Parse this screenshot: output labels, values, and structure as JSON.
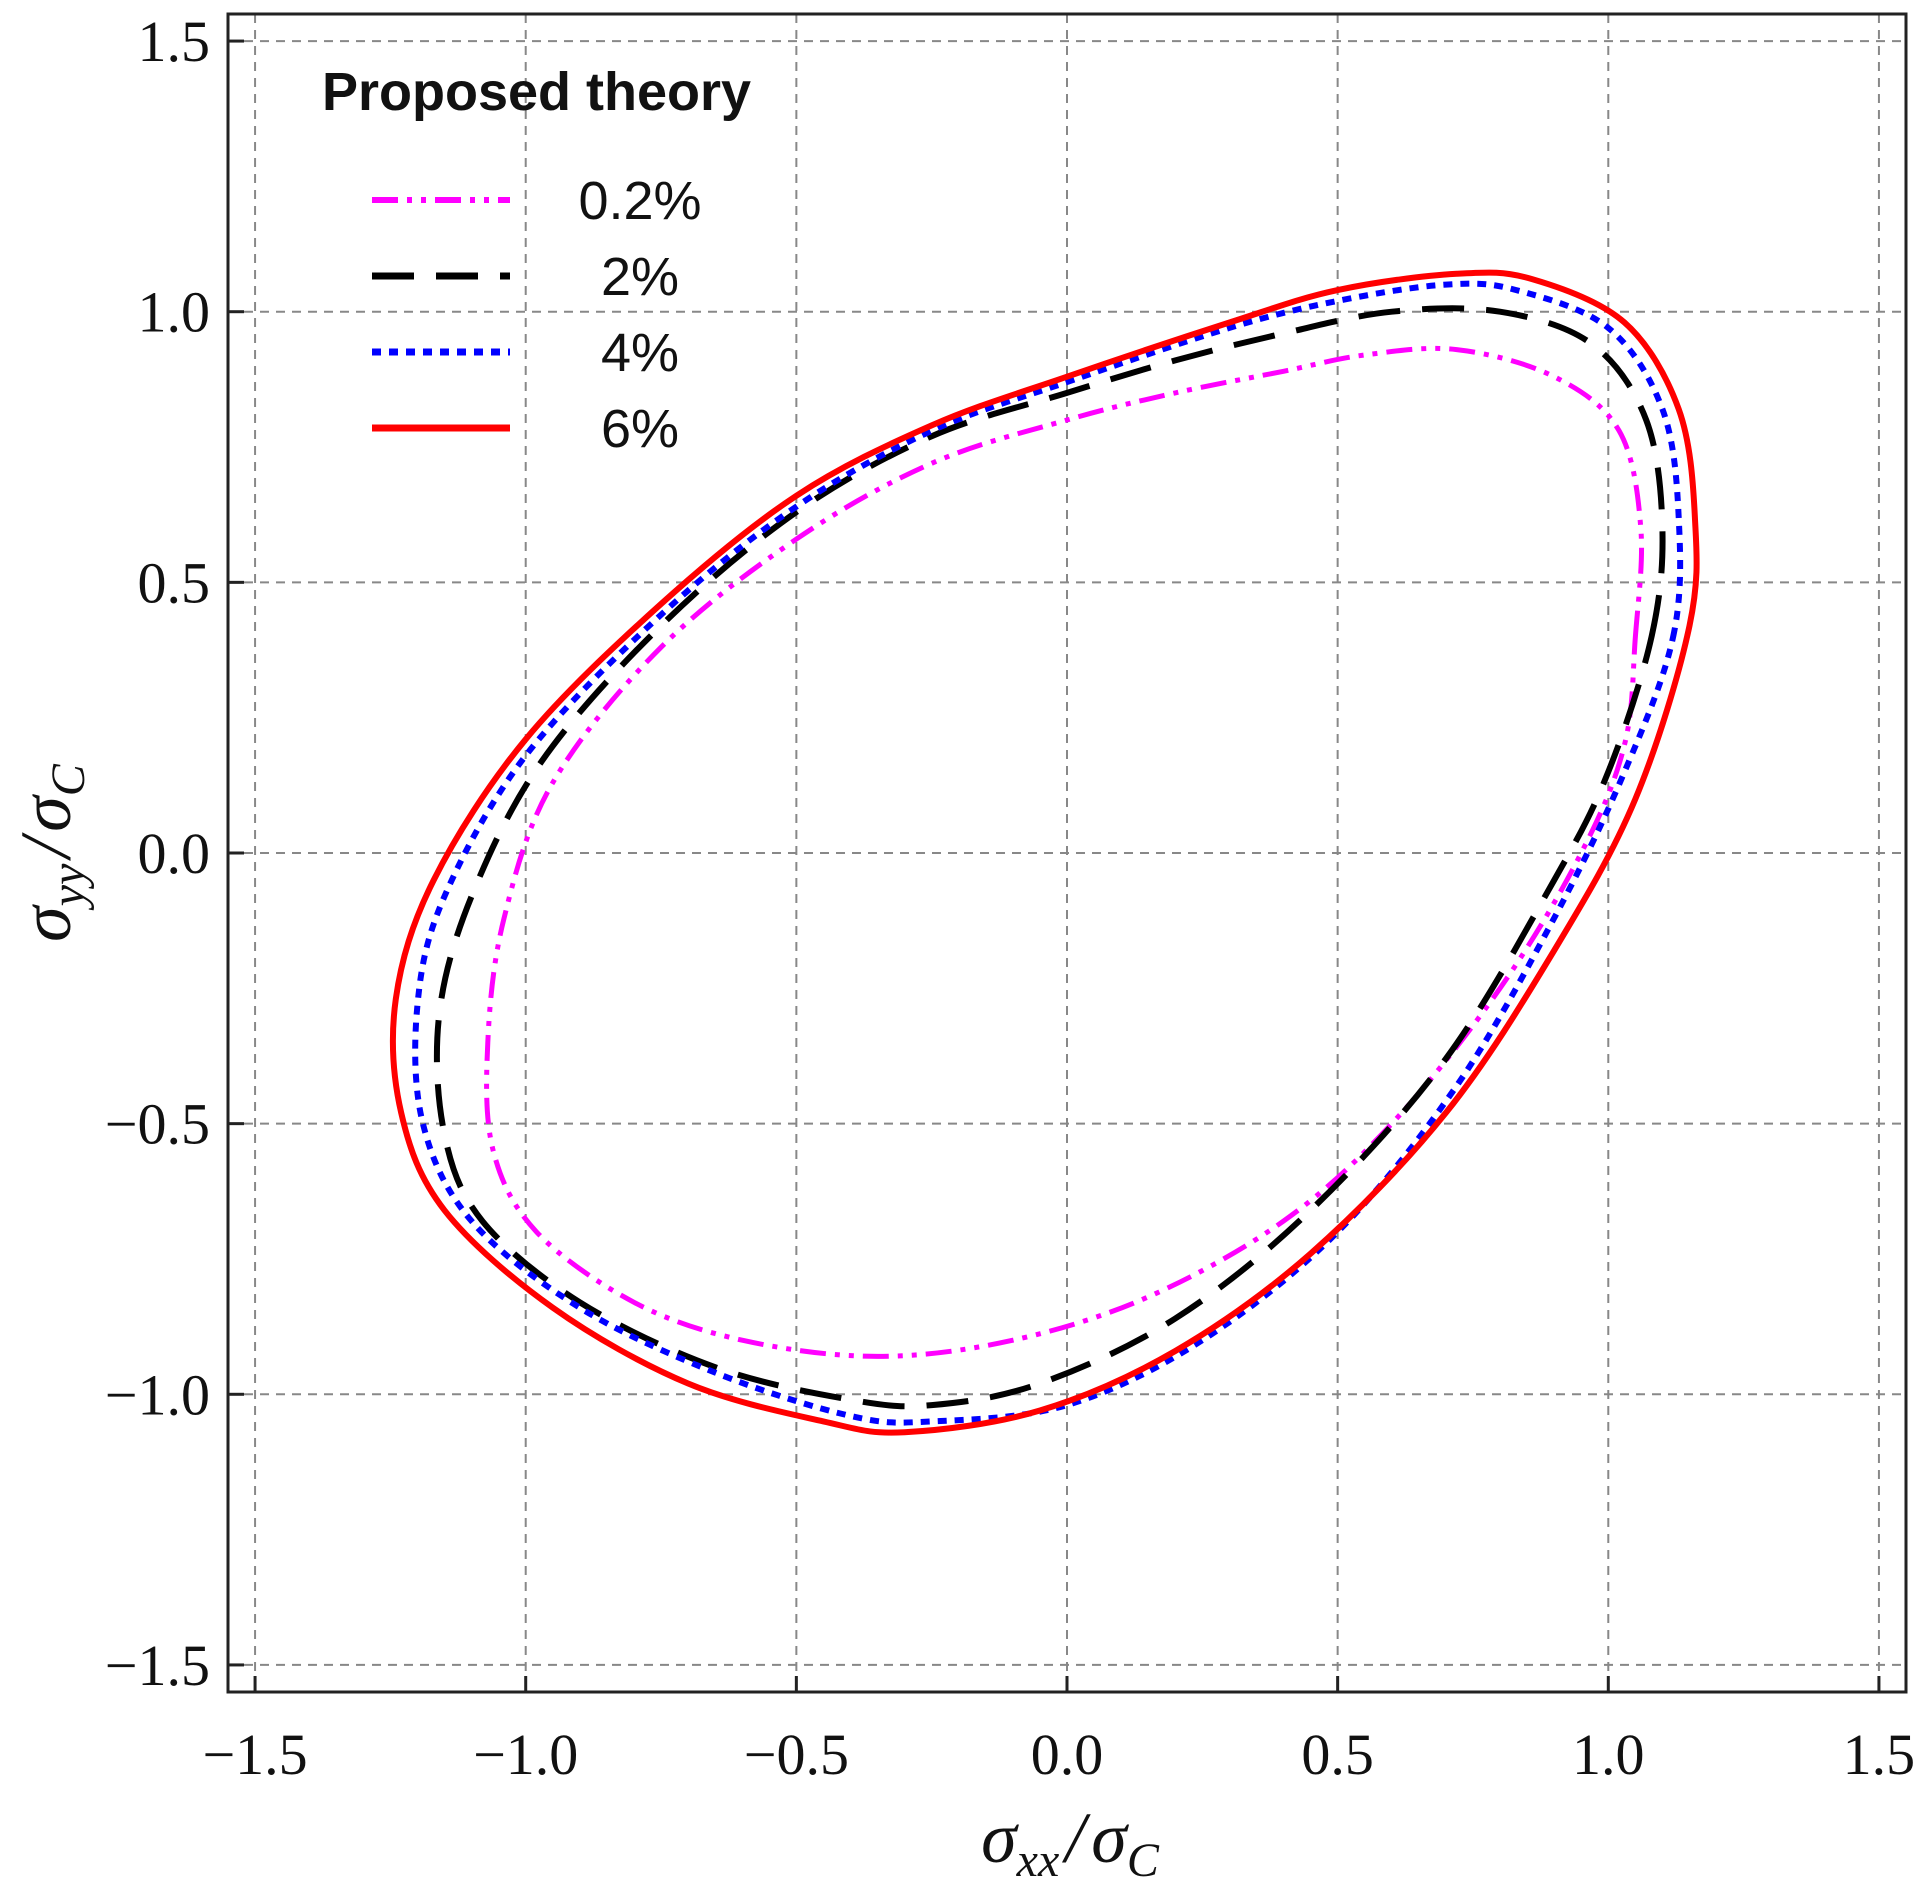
{
  "chart_data": {
    "type": "line",
    "title": "",
    "xlabel": "σxx / σC",
    "ylabel": "σyy / σC",
    "xlabel_parts": {
      "sigma": "σ",
      "sub": "xx",
      "slash": "/",
      "sigma2": "σ",
      "sub2": "C"
    },
    "ylabel_parts": {
      "sigma": "σ",
      "sub": "yy",
      "slash": "/",
      "sigma2": "σ",
      "sub2": "C"
    },
    "xlim": [
      -1.55,
      1.55
    ],
    "ylim": [
      -1.55,
      1.55
    ],
    "xticks": [
      -1.5,
      -1.0,
      -0.5,
      0.0,
      0.5,
      1.0,
      1.5
    ],
    "yticks": [
      -1.5,
      -1.0,
      -0.5,
      0.0,
      0.5,
      1.0,
      1.5
    ],
    "xtick_labels": [
      "−1.5",
      "−1.0",
      "−0.5",
      "0.0",
      "0.5",
      "1.0",
      "1.5"
    ],
    "ytick_labels": [
      "−1.5",
      "−1.0",
      "−0.5",
      "0.0",
      "0.5",
      "1.0",
      "1.5"
    ],
    "grid": true,
    "legend": {
      "title": "Proposed theory",
      "position": "top-left"
    },
    "series": [
      {
        "name": "0.2%",
        "color": "#ff00ff",
        "style": "dash-dot-dot",
        "points": [
          [
            1.05,
            0.4
          ],
          [
            1.06,
            0.6
          ],
          [
            1.02,
            0.78
          ],
          [
            0.9,
            0.88
          ],
          [
            0.72,
            0.93
          ],
          [
            0.55,
            0.92
          ],
          [
            0.4,
            0.89
          ],
          [
            0.2,
            0.85
          ],
          [
            0.0,
            0.8
          ],
          [
            -0.25,
            0.72
          ],
          [
            -0.5,
            0.58
          ],
          [
            -0.75,
            0.38
          ],
          [
            -0.95,
            0.13
          ],
          [
            -1.04,
            -0.12
          ],
          [
            -1.07,
            -0.35
          ],
          [
            -1.06,
            -0.55
          ],
          [
            -0.98,
            -0.7
          ],
          [
            -0.8,
            -0.83
          ],
          [
            -0.6,
            -0.9
          ],
          [
            -0.35,
            -0.93
          ],
          [
            -0.1,
            -0.9
          ],
          [
            0.15,
            -0.82
          ],
          [
            0.4,
            -0.68
          ],
          [
            0.6,
            -0.5
          ],
          [
            0.8,
            -0.25
          ],
          [
            0.95,
            0.0
          ],
          [
            1.03,
            0.2
          ],
          [
            1.05,
            0.4
          ]
        ]
      },
      {
        "name": "2%",
        "color": "#000000",
        "style": "long-dash",
        "points": [
          [
            1.08,
            0.4
          ],
          [
            1.1,
            0.6
          ],
          [
            1.07,
            0.8
          ],
          [
            0.97,
            0.94
          ],
          [
            0.8,
            1.0
          ],
          [
            0.6,
            1.0
          ],
          [
            0.4,
            0.96
          ],
          [
            0.2,
            0.91
          ],
          [
            0.0,
            0.85
          ],
          [
            -0.25,
            0.77
          ],
          [
            -0.5,
            0.63
          ],
          [
            -0.75,
            0.42
          ],
          [
            -0.97,
            0.17
          ],
          [
            -1.1,
            -0.08
          ],
          [
            -1.16,
            -0.3
          ],
          [
            -1.15,
            -0.52
          ],
          [
            -1.08,
            -0.68
          ],
          [
            -0.9,
            -0.83
          ],
          [
            -0.65,
            -0.95
          ],
          [
            -0.4,
            -1.01
          ],
          [
            -0.25,
            -1.02
          ],
          [
            -0.05,
            -0.98
          ],
          [
            0.2,
            -0.86
          ],
          [
            0.45,
            -0.66
          ],
          [
            0.7,
            -0.38
          ],
          [
            0.9,
            -0.05
          ],
          [
            1.0,
            0.15
          ],
          [
            1.08,
            0.4
          ]
        ]
      },
      {
        "name": "4%",
        "color": "#0000ff",
        "style": "dotted",
        "points": [
          [
            1.12,
            0.4
          ],
          [
            1.13,
            0.62
          ],
          [
            1.1,
            0.82
          ],
          [
            1.0,
            0.97
          ],
          [
            0.83,
            1.04
          ],
          [
            0.7,
            1.05
          ],
          [
            0.5,
            1.02
          ],
          [
            0.3,
            0.97
          ],
          [
            0.0,
            0.87
          ],
          [
            -0.25,
            0.78
          ],
          [
            -0.5,
            0.64
          ],
          [
            -0.75,
            0.44
          ],
          [
            -1.0,
            0.18
          ],
          [
            -1.15,
            -0.08
          ],
          [
            -1.2,
            -0.28
          ],
          [
            -1.19,
            -0.5
          ],
          [
            -1.1,
            -0.68
          ],
          [
            -0.9,
            -0.84
          ],
          [
            -0.65,
            -0.96
          ],
          [
            -0.4,
            -1.04
          ],
          [
            -0.25,
            -1.05
          ],
          [
            0.0,
            -1.02
          ],
          [
            0.25,
            -0.9
          ],
          [
            0.5,
            -0.7
          ],
          [
            0.72,
            -0.43
          ],
          [
            0.9,
            -0.12
          ],
          [
            1.03,
            0.15
          ],
          [
            1.12,
            0.4
          ]
        ]
      },
      {
        "name": "6%",
        "color": "#ff0000",
        "style": "solid",
        "points": [
          [
            1.15,
            0.42
          ],
          [
            1.16,
            0.62
          ],
          [
            1.13,
            0.82
          ],
          [
            1.03,
            0.98
          ],
          [
            0.86,
            1.06
          ],
          [
            0.72,
            1.07
          ],
          [
            0.5,
            1.04
          ],
          [
            0.3,
            0.98
          ],
          [
            0.0,
            0.88
          ],
          [
            -0.25,
            0.79
          ],
          [
            -0.5,
            0.66
          ],
          [
            -0.75,
            0.46
          ],
          [
            -1.0,
            0.21
          ],
          [
            -1.17,
            -0.05
          ],
          [
            -1.24,
            -0.27
          ],
          [
            -1.23,
            -0.48
          ],
          [
            -1.15,
            -0.66
          ],
          [
            -0.95,
            -0.84
          ],
          [
            -0.7,
            -0.98
          ],
          [
            -0.45,
            -1.05
          ],
          [
            -0.3,
            -1.07
          ],
          [
            -0.05,
            -1.03
          ],
          [
            0.2,
            -0.92
          ],
          [
            0.45,
            -0.74
          ],
          [
            0.7,
            -0.48
          ],
          [
            0.9,
            -0.18
          ],
          [
            1.05,
            0.1
          ],
          [
            1.15,
            0.42
          ]
        ]
      }
    ]
  }
}
